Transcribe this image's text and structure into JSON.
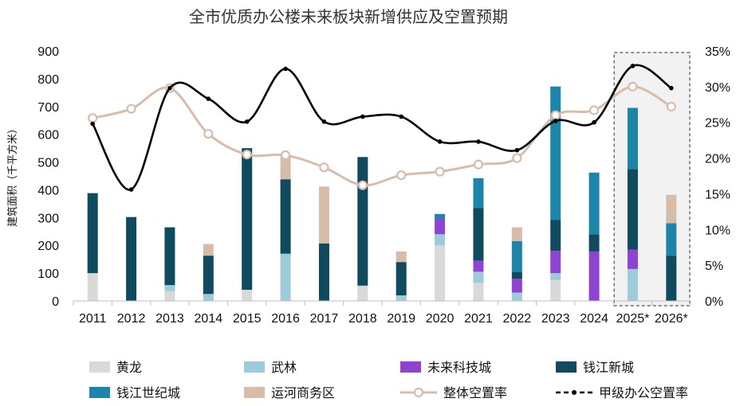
{
  "chart_data": {
    "type": "bar",
    "subtype": "stacked bar with line overlays on secondary axis",
    "title": "全市优质办公楼未来板块新增供应及空置预期",
    "ylabel": "建筑面积（千平方米）",
    "xlabel": "",
    "ylim": [
      0,
      900
    ],
    "yticks": [
      "0",
      "100",
      "200",
      "300",
      "400",
      "500",
      "600",
      "700",
      "800",
      "900"
    ],
    "y2lim": [
      0,
      35
    ],
    "y2ticks": [
      "0%",
      "5%",
      "10%",
      "15%",
      "20%",
      "25%",
      "30%",
      "35%"
    ],
    "categories": [
      "2011",
      "2012",
      "2013",
      "2014",
      "2015",
      "2016",
      "2017",
      "2018",
      "2019",
      "2020",
      "2021",
      "2022",
      "2023",
      "2024",
      "2025*",
      "2026*"
    ],
    "forecast_categories": [
      "2025*",
      "2026*"
    ],
    "grid": false,
    "legend_position": "bottom",
    "series": [
      {
        "name": "黄龙",
        "kind": "bar",
        "color": "#d9d9d9",
        "values": [
          100,
          0,
          35,
          0,
          40,
          0,
          0,
          55,
          0,
          200,
          65,
          0,
          75,
          0,
          0,
          0
        ]
      },
      {
        "name": "武林",
        "kind": "bar",
        "color": "#9ecbd9",
        "values": [
          0,
          0,
          22,
          25,
          0,
          170,
          0,
          0,
          20,
          40,
          40,
          30,
          25,
          0,
          115,
          0
        ]
      },
      {
        "name": "未来科技城",
        "kind": "bar",
        "color": "#8e44d0",
        "values": [
          0,
          0,
          0,
          0,
          0,
          0,
          0,
          0,
          0,
          55,
          40,
          50,
          80,
          178,
          70,
          0
        ]
      },
      {
        "name": "钱江新城",
        "kind": "bar",
        "color": "#0f4a5e",
        "values": [
          288,
          302,
          208,
          138,
          510,
          268,
          207,
          463,
          120,
          0,
          190,
          25,
          112,
          62,
          290,
          162
        ]
      },
      {
        "name": "钱江世纪城",
        "kind": "bar",
        "color": "#1d85a9",
        "values": [
          0,
          0,
          0,
          0,
          0,
          0,
          0,
          0,
          0,
          18,
          107,
          110,
          480,
          222,
          220,
          118
        ]
      },
      {
        "name": "运河商务区",
        "kind": "bar",
        "color": "#d7bcaa",
        "values": [
          0,
          0,
          0,
          42,
          0,
          85,
          205,
          0,
          38,
          0,
          0,
          50,
          0,
          0,
          0,
          102
        ]
      },
      {
        "name": "整体空置率",
        "kind": "line",
        "axis": "y2",
        "color": "#d9bcab",
        "marker": "circle",
        "values": [
          25.6,
          26.9,
          29.8,
          23.4,
          20.5,
          20.4,
          18.7,
          16.2,
          17.6,
          18.1,
          19.1,
          20.0,
          26.0,
          26.7,
          30.0,
          27.2
        ]
      },
      {
        "name": "甲级办公空置率",
        "kind": "line",
        "axis": "y2",
        "color": "#000000",
        "marker": "dot",
        "dashed_legend": true,
        "values": [
          24.8,
          15.6,
          29.8,
          28.3,
          25.1,
          32.5,
          25.1,
          25.8,
          25.8,
          22.3,
          22.3,
          21.1,
          25.2,
          25.0,
          32.9,
          29.8
        ]
      }
    ]
  }
}
